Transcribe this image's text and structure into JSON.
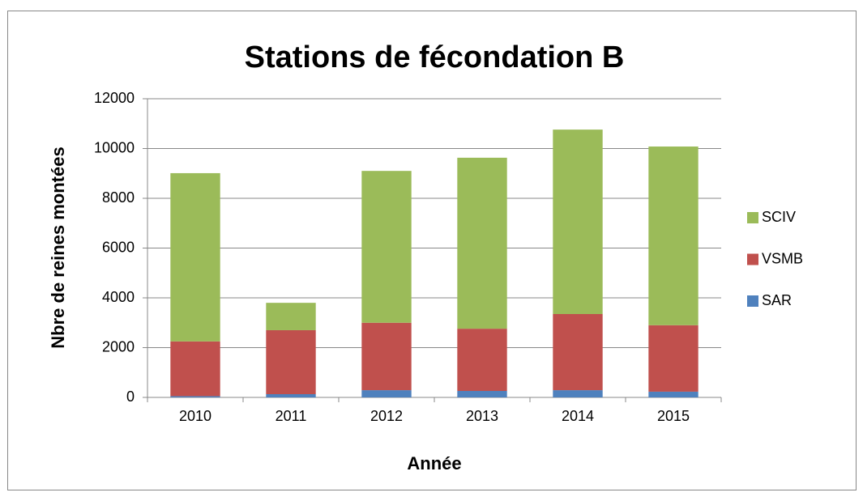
{
  "chart_data": {
    "type": "stacked_bar",
    "title": "Stations de fécondation B",
    "x_label": "Année",
    "y_label": "Nbre de reines montées",
    "categories": [
      "2010",
      "2011",
      "2012",
      "2013",
      "2014",
      "2015"
    ],
    "series": [
      {
        "name": "SAR",
        "color": "#4f81bd",
        "values": [
          50,
          130,
          290,
          260,
          290,
          230
        ]
      },
      {
        "name": "VSMB",
        "color": "#c0504d",
        "values": [
          2200,
          2570,
          2710,
          2500,
          3060,
          2670
        ]
      },
      {
        "name": "SCIV",
        "color": "#9bbb59",
        "values": [
          6760,
          1100,
          6100,
          6870,
          7410,
          7180
        ]
      }
    ],
    "ylim": [
      0,
      12000
    ],
    "yticks": [
      0,
      2000,
      4000,
      6000,
      8000,
      10000,
      12000
    ],
    "grid": true,
    "legend": "right"
  }
}
